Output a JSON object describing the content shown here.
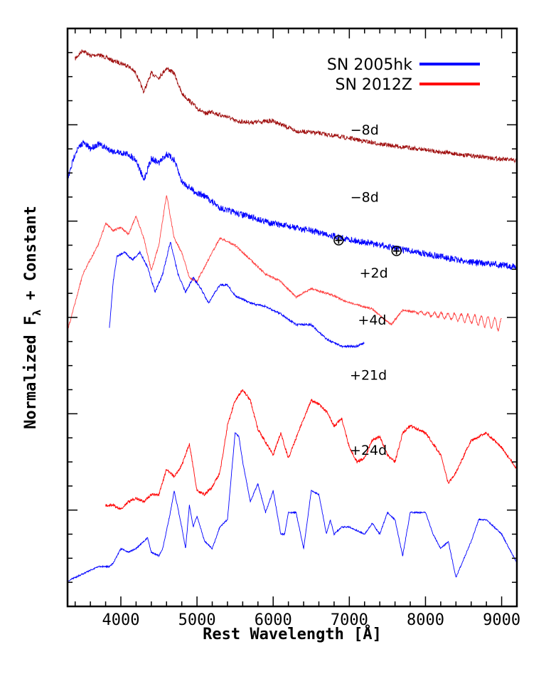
{
  "chart_data": {
    "type": "line",
    "title": "",
    "xlabel": "Rest Wavelength [Å]",
    "ylabel": "Normalized F",
    "ylabel_subscript": "λ",
    "ylabel_suffix": " + Constant",
    "xlim": [
      3300,
      9200
    ],
    "xticks": [
      4000,
      5000,
      6000,
      7000,
      8000,
      9000
    ],
    "grid": false,
    "legend_position": "top-right",
    "legend": [
      {
        "name": "SN 2005hk",
        "color": "#0000ff"
      },
      {
        "name": "SN 2012Z",
        "color": "#ff0000"
      }
    ],
    "telluric_symbol": "⊕",
    "series": [
      {
        "epoch": "−8d",
        "object": "SN 2012Z",
        "color": "#a01010",
        "noise": 6,
        "x": [
          3400,
          3500,
          3600,
          3700,
          3800,
          3900,
          4000,
          4100,
          4200,
          4300,
          4400,
          4500,
          4600,
          4700,
          4800,
          4900,
          5000,
          5100,
          5200,
          5300,
          5400,
          5500,
          5700,
          6000,
          6300,
          6600,
          7000,
          7400,
          8000,
          8500,
          9200
        ],
        "y": [
          0.42,
          0.3,
          0.38,
          0.36,
          0.4,
          0.45,
          0.48,
          0.52,
          0.62,
          0.88,
          0.62,
          0.68,
          0.55,
          0.62,
          0.9,
          1.0,
          1.1,
          1.18,
          1.15,
          1.2,
          1.22,
          1.28,
          1.3,
          1.28,
          1.42,
          1.45,
          1.52,
          1.6,
          1.68,
          1.75,
          1.83
        ]
      },
      {
        "epoch": "−8d",
        "object": "SN 2005hk",
        "color": "#0000ff",
        "noise": 9,
        "x": [
          3300,
          3400,
          3500,
          3600,
          3700,
          3800,
          3900,
          4000,
          4100,
          4200,
          4300,
          4400,
          4500,
          4600,
          4700,
          4800,
          4900,
          5000,
          5100,
          5200,
          5300,
          5400,
          5500,
          6000,
          6500,
          7000,
          7500,
          8000,
          8500,
          9200
        ],
        "y": [
          2.1,
          1.72,
          1.58,
          1.66,
          1.6,
          1.65,
          1.7,
          1.72,
          1.74,
          1.82,
          2.1,
          1.8,
          1.86,
          1.74,
          1.82,
          2.12,
          2.2,
          2.28,
          2.32,
          2.4,
          2.48,
          2.52,
          2.55,
          2.7,
          2.8,
          2.92,
          3.02,
          3.12,
          3.22,
          3.3
        ]
      },
      {
        "epoch": "+2d",
        "object": "SN 2012Z",
        "color": "#ff4040",
        "noise": 3,
        "x": [
          3300,
          3400,
          3500,
          3700,
          3800,
          3900,
          4000,
          4100,
          4200,
          4300,
          4400,
          4500,
          4600,
          4700,
          4800,
          4900,
          5000,
          5100,
          5200,
          5300,
          5500,
          5700,
          5900,
          6100,
          6300,
          6500,
          6800,
          7000,
          7300,
          7550,
          7700,
          8000,
          8300,
          8600,
          9000
        ],
        "y": [
          4.18,
          3.8,
          3.4,
          3.0,
          2.7,
          2.8,
          2.75,
          2.85,
          2.6,
          2.9,
          3.35,
          3.0,
          2.3,
          2.9,
          3.1,
          3.45,
          3.5,
          3.3,
          3.1,
          2.9,
          3.0,
          3.2,
          3.4,
          3.5,
          3.72,
          3.6,
          3.7,
          3.8,
          3.88,
          4.1,
          3.9,
          3.95,
          3.98,
          4.02,
          4.1
        ]
      },
      {
        "epoch": "+4d",
        "object": "SN 2005hk",
        "color": "#0000ff",
        "noise": 3,
        "x": [
          3850,
          3900,
          3950,
          4050,
          4150,
          4250,
          4350,
          4450,
          4550,
          4650,
          4750,
          4850,
          4950,
          5050,
          5150,
          5300,
          5400,
          5500,
          5700,
          5900,
          6100,
          6300,
          6500,
          6700,
          6900,
          7100,
          7200
        ],
        "y": [
          4.15,
          3.5,
          3.15,
          3.1,
          3.2,
          3.1,
          3.3,
          3.65,
          3.4,
          2.95,
          3.4,
          3.65,
          3.45,
          3.6,
          3.8,
          3.55,
          3.55,
          3.7,
          3.8,
          3.85,
          3.95,
          4.1,
          4.1,
          4.3,
          4.4,
          4.4,
          4.35
        ]
      },
      {
        "epoch": "+21d",
        "object": "SN 2012Z",
        "color": "#ff0000",
        "noise": 4,
        "x": [
          3800,
          3900,
          4000,
          4100,
          4200,
          4300,
          4400,
          4500,
          4600,
          4700,
          4800,
          4900,
          5000,
          5100,
          5200,
          5300,
          5400,
          5500,
          5600,
          5700,
          5800,
          6000,
          6100,
          6200,
          6400,
          6500,
          6600,
          6700,
          6800,
          6900,
          7000,
          7100,
          7200,
          7300,
          7400,
          7500,
          7600,
          7700,
          7800,
          8000,
          8200,
          8300,
          8400,
          8600,
          8800,
          9000,
          9200
        ],
        "y": [
          6.6,
          6.6,
          6.65,
          6.55,
          6.5,
          6.55,
          6.45,
          6.45,
          6.1,
          6.2,
          6.05,
          5.75,
          6.4,
          6.45,
          6.35,
          6.15,
          5.5,
          5.15,
          5.0,
          5.15,
          5.55,
          5.9,
          5.6,
          5.95,
          5.4,
          5.15,
          5.2,
          5.3,
          5.5,
          5.4,
          5.8,
          6.0,
          5.95,
          5.7,
          5.65,
          5.9,
          6.0,
          5.6,
          5.5,
          5.6,
          5.9,
          6.3,
          6.15,
          5.7,
          5.6,
          5.8,
          6.1
        ]
      },
      {
        "epoch": "+24d",
        "object": "SN 2005hk",
        "color": "#0000ff",
        "noise": 2,
        "x": [
          3300,
          3500,
          3700,
          3850,
          3900,
          4000,
          4100,
          4200,
          4350,
          4400,
          4500,
          4550,
          4650,
          4700,
          4800,
          4850,
          4900,
          4950,
          5000,
          5100,
          5200,
          5300,
          5400,
          5500,
          5550,
          5600,
          5700,
          5800,
          5900,
          6000,
          6100,
          6150,
          6200,
          6300,
          6400,
          6500,
          6600,
          6700,
          6750,
          6800,
          6900,
          7000,
          7100,
          7200,
          7300,
          7400,
          7500,
          7600,
          7700,
          7800,
          8000,
          8100,
          8200,
          8300,
          8400,
          8600,
          8700,
          8800,
          9000,
          9200
        ],
        "y": [
          7.65,
          7.55,
          7.45,
          7.45,
          7.4,
          7.2,
          7.25,
          7.2,
          7.05,
          7.25,
          7.3,
          7.2,
          6.7,
          6.4,
          6.9,
          7.2,
          6.6,
          6.9,
          6.75,
          7.1,
          7.2,
          6.9,
          6.8,
          5.6,
          5.65,
          6.0,
          6.55,
          6.3,
          6.7,
          6.4,
          7.0,
          7.0,
          6.7,
          6.7,
          7.2,
          6.4,
          6.45,
          7.0,
          6.8,
          7.0,
          6.9,
          6.9,
          6.95,
          7.0,
          6.85,
          7.0,
          6.7,
          6.8,
          7.3,
          6.7,
          6.7,
          7.0,
          7.2,
          7.1,
          7.6,
          7.1,
          6.8,
          6.8,
          7.0,
          7.4
        ]
      }
    ]
  }
}
